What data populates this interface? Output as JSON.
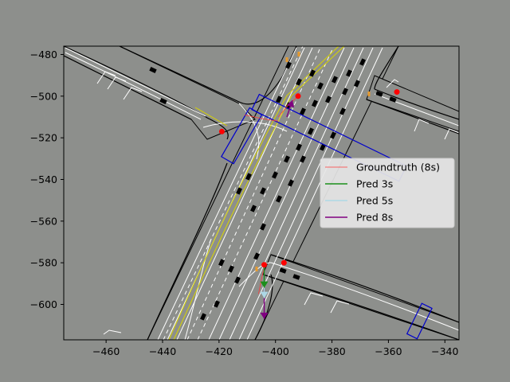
{
  "chart_data": {
    "type": "scatter",
    "title": "",
    "xlabel": "",
    "ylabel": "",
    "xlim": [
      -475,
      -335
    ],
    "ylim": [
      -617,
      -476
    ],
    "x_ticks": [
      -460,
      -440,
      -420,
      -400,
      -380,
      -360,
      -340
    ],
    "y_ticks": [
      -480,
      -500,
      -520,
      -540,
      -560,
      -580,
      -600
    ],
    "x_tick_labels": [
      "−460",
      "−440",
      "−420",
      "−400",
      "−380",
      "−360",
      "−340"
    ],
    "y_tick_labels": [
      "−480",
      "−500",
      "−520",
      "−540",
      "−560",
      "−580",
      "−600"
    ],
    "grid": false,
    "legend_position": "center-right",
    "series": [
      {
        "name": "Groundtruth (8s)",
        "color": "#ff3a3a",
        "style": "line"
      },
      {
        "name": "Pred 3s",
        "color": "#1b8f1b",
        "style": "line"
      },
      {
        "name": "Pred 5s",
        "color": "#add8e6",
        "style": "line"
      },
      {
        "name": "Pred 8s",
        "color": "#800080",
        "style": "line"
      }
    ],
    "agents": [
      {
        "x": -404,
        "y": -581,
        "heading": -90,
        "color": "#ff0000"
      },
      {
        "x": -392,
        "y": -500,
        "heading": 110,
        "color": "#ff0000"
      },
      {
        "x": -357,
        "y": -498,
        "heading": 0,
        "color": "#ff0000"
      },
      {
        "x": -419,
        "y": -517,
        "heading": 0,
        "color": "#ff0000"
      },
      {
        "x": -397,
        "y": -580,
        "heading": 0,
        "color": "#ff0000"
      }
    ],
    "groundtruth_paths": [
      [
        [
          -404,
          -582
        ],
        [
          -405,
          -588
        ],
        [
          -406,
          -595
        ]
      ],
      [
        [
          -392,
          -500
        ],
        [
          -396,
          -505
        ],
        [
          -399,
          -510
        ]
      ],
      [
        [
          -411,
          -509
        ],
        [
          -404,
          -511
        ],
        [
          -399,
          -512
        ]
      ]
    ],
    "pred_arrows": [
      {
        "label": "Pred 3s",
        "from": [
          -404,
          -582
        ],
        "to": [
          -404,
          -592
        ]
      },
      {
        "label": "Pred 5s",
        "from": [
          -404,
          -582
        ],
        "to": [
          -404,
          -597
        ]
      },
      {
        "label": "Pred 8s",
        "from": [
          -404,
          -582
        ],
        "to": [
          -404,
          -607
        ]
      },
      {
        "label": "Pred 8s",
        "from": [
          -396,
          -510
        ],
        "to": [
          -394,
          -502
        ]
      }
    ],
    "boxes": [
      {
        "cx": -412,
        "cy": -519,
        "length": 20,
        "width": 5,
        "angle": 60
      },
      {
        "cx": -381,
        "cy": -520,
        "length": 58,
        "width": 6,
        "angle": -26
      },
      {
        "cx": -349,
        "cy": -608,
        "length": 12,
        "width": 4,
        "angle": 64
      }
    ]
  }
}
